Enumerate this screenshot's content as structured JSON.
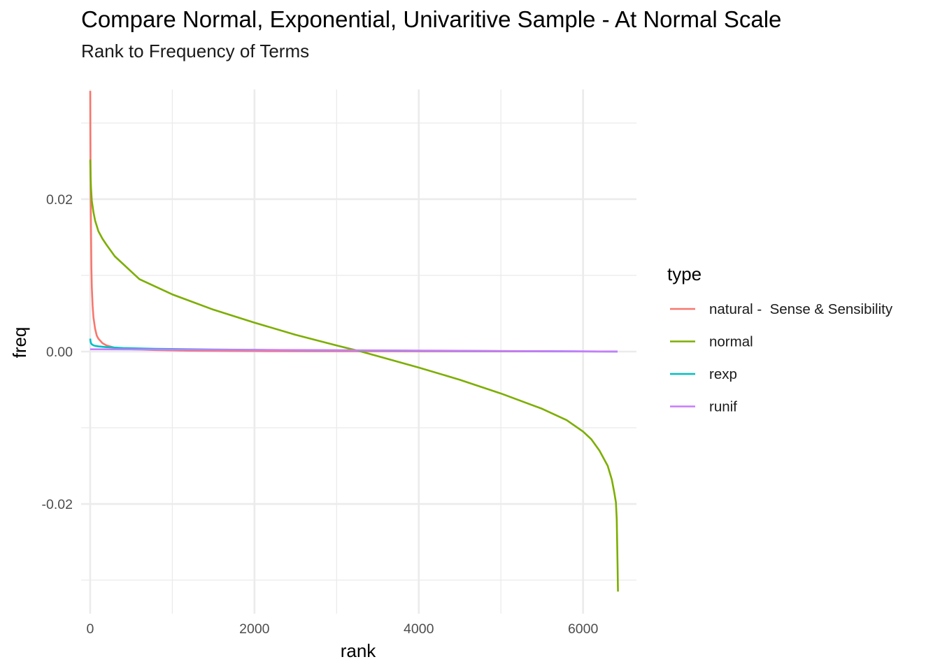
{
  "chart_data": {
    "type": "line",
    "title": "Compare Normal, Exponential, Univaritive Sample - At Normal Scale",
    "subtitle": "Rank to Frequency of Terms",
    "xlabel": "rank",
    "ylabel": "freq",
    "xlim": [
      -110,
      6650
    ],
    "ylim": [
      -0.0344,
      0.0344
    ],
    "x_ticks": [
      0,
      2000,
      4000,
      6000
    ],
    "x_tick_labels": [
      "0",
      "2000",
      "4000",
      "6000"
    ],
    "y_ticks": [
      -0.02,
      0.0,
      0.02
    ],
    "y_tick_labels": [
      "-0.02",
      "0.00",
      "0.02"
    ],
    "grid": true,
    "legend": {
      "title": "type",
      "position": "right"
    },
    "series": [
      {
        "name": "natural -  Sense & Sensibility",
        "color": "#F8766D",
        "x": [
          1,
          3,
          6,
          10,
          15,
          20,
          30,
          40,
          60,
          80,
          100,
          150,
          200,
          300,
          500,
          800,
          1200,
          2000,
          3000,
          4000,
          5000,
          6000,
          6420
        ],
        "y": [
          0.0342,
          0.028,
          0.021,
          0.016,
          0.011,
          0.0085,
          0.006,
          0.0045,
          0.003,
          0.0021,
          0.0017,
          0.0011,
          0.0008,
          0.0005,
          0.0003,
          0.0002,
          0.00012,
          7e-05,
          5e-05,
          4e-05,
          3e-05,
          2e-05,
          2e-05
        ]
      },
      {
        "name": "normal",
        "color": "#7CAE00",
        "x": [
          1,
          5,
          10,
          20,
          40,
          60,
          100,
          150,
          200,
          300,
          400,
          500,
          600,
          800,
          1000,
          1500,
          2000,
          2500,
          3000,
          3300,
          3500,
          4000,
          4500,
          5000,
          5500,
          5800,
          6000,
          6100,
          6200,
          6300,
          6350,
          6380,
          6400,
          6410,
          6415,
          6420,
          6425
        ],
        "y": [
          0.0252,
          0.023,
          0.0215,
          0.0198,
          0.0183,
          0.0172,
          0.0158,
          0.0148,
          0.014,
          0.0125,
          0.0115,
          0.0105,
          0.0095,
          0.0085,
          0.0075,
          0.0055,
          0.0038,
          0.0022,
          0.0008,
          0.0,
          -0.0006,
          -0.0021,
          -0.0037,
          -0.0055,
          -0.0075,
          -0.009,
          -0.0105,
          -0.0115,
          -0.013,
          -0.015,
          -0.0168,
          -0.0185,
          -0.0198,
          -0.022,
          -0.025,
          -0.028,
          -0.0315
        ]
      },
      {
        "name": "rexp",
        "color": "#00BFC4",
        "x": [
          1,
          5,
          10,
          20,
          40,
          60,
          100,
          200,
          400,
          800,
          1500,
          2500,
          4000,
          5500,
          6420
        ],
        "y": [
          0.0017,
          0.0013,
          0.0011,
          0.00095,
          0.00082,
          0.00075,
          0.00068,
          0.00058,
          0.00047,
          0.00036,
          0.00027,
          0.00019,
          0.00011,
          5e-05,
          1e-05
        ]
      },
      {
        "name": "runif",
        "color": "#C77CFF",
        "x": [
          1,
          500,
          1000,
          1500,
          2000,
          2500,
          3000,
          3500,
          4000,
          4500,
          5000,
          5500,
          6000,
          6420
        ],
        "y": [
          0.0003,
          0.00028,
          0.00026,
          0.00024,
          0.00022,
          0.0002,
          0.00018,
          0.00016,
          0.00013,
          0.00011,
          8e-05,
          6e-05,
          3e-05,
          1e-05
        ]
      }
    ]
  }
}
